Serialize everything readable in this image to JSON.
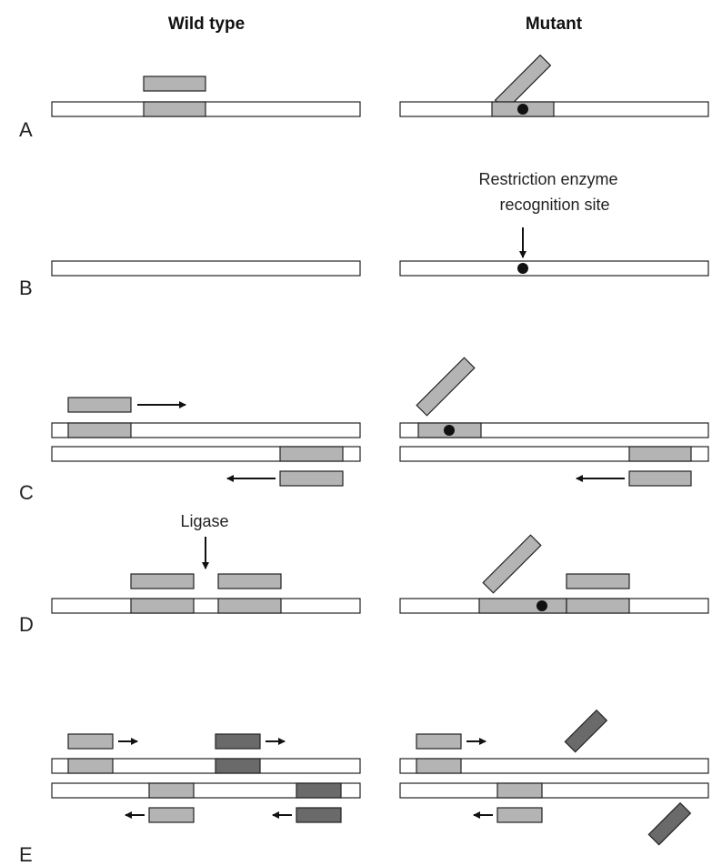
{
  "columns": {
    "wild_type": "Wild type",
    "mutant": "Mutant"
  },
  "rows": {
    "A": "A",
    "B": "B",
    "C": "C",
    "D": "D",
    "E": "E"
  },
  "annotations": {
    "restriction_line1": "Restriction enzyme",
    "restriction_line2": "recognition site",
    "ligase": "Ligase"
  },
  "colors": {
    "probe_light": "#b4b4b4",
    "probe_dark": "#6a6a6a",
    "mutation_dot": "#111111"
  }
}
